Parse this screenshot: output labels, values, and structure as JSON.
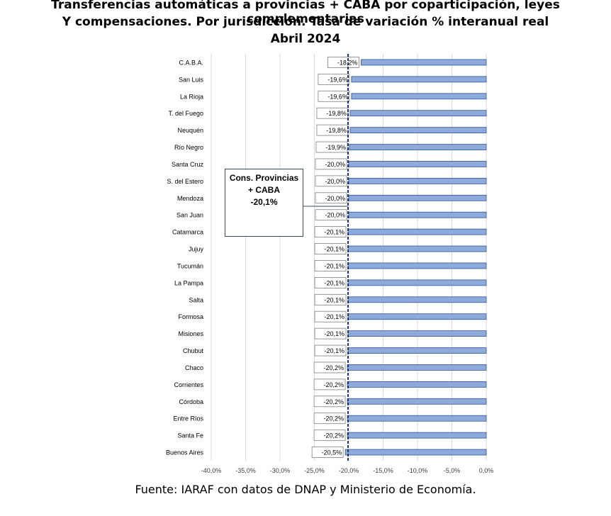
{
  "header": {
    "title_line1": "Transferencias automáticas a provincias + CABA por coparticipación, leyes complementarias",
    "title_line2": "Y compensaciones. Por jurisdicción. Tasa de variación % interanual real",
    "title_line3": "Abril 2024"
  },
  "callout": {
    "line1": "Cons. Provincias",
    "line2": "+ CABA",
    "line3": "-20,1%"
  },
  "source": "Fuente: IARAF con datos de DNAP y Ministerio de Economía.",
  "colors": {
    "bar_fill": "#8eaadb",
    "bar_stroke": "#2f5597",
    "reference_line": "#1f3864",
    "grid": "#d9d9d9"
  },
  "chart_data": {
    "type": "bar",
    "orientation": "horizontal",
    "categories": [
      "C.A.B.A.",
      "San Luis",
      "La Rioja",
      "T. del Fuego",
      "Neuquén",
      "Río Negro",
      "Santa Cruz",
      "S. del Estero",
      "Mendoza",
      "San Juan",
      "Catamarca",
      "Jujuy",
      "Tucumán",
      "La Pampa",
      "Salta",
      "Formosa",
      "Misiones",
      "Chubut",
      "Chaco",
      "Corrientes",
      "Córdoba",
      "Entre Ríos",
      "Santa Fe",
      "Buenos Aires"
    ],
    "values": [
      -18.2,
      -19.6,
      -19.6,
      -19.8,
      -19.8,
      -19.9,
      -20.0,
      -20.0,
      -20.0,
      -20.0,
      -20.1,
      -20.1,
      -20.1,
      -20.1,
      -20.1,
      -20.1,
      -20.1,
      -20.1,
      -20.2,
      -20.2,
      -20.2,
      -20.2,
      -20.2,
      -20.5
    ],
    "data_labels": [
      "-18,2%",
      "-19,6%",
      "-19,6%",
      "-19,8%",
      "-19,8%",
      "-19,9%",
      "-20,0%",
      "-20,0%",
      "-20,0%",
      "-20,0%",
      "-20,1%",
      "-20,1%",
      "-20,1%",
      "-20,1%",
      "-20,1%",
      "-20,1%",
      "-20,1%",
      "-20,1%",
      "-20,2%",
      "-20,2%",
      "-20,2%",
      "-20,2%",
      "-20,2%",
      "-20,5%"
    ],
    "xlim": [
      -40,
      0
    ],
    "xticks": [
      -40,
      -35,
      -30,
      -25,
      -20,
      -15,
      -10,
      -5,
      0
    ],
    "xtick_labels": [
      "-40,0%",
      "-35,0%",
      "-30,0%",
      "-25,0%",
      "-20,0%",
      "-15,0%",
      "-10,0%",
      "-5,0%",
      "0,0%"
    ],
    "reference_value": -20.1,
    "grid": true,
    "legend": "none"
  }
}
